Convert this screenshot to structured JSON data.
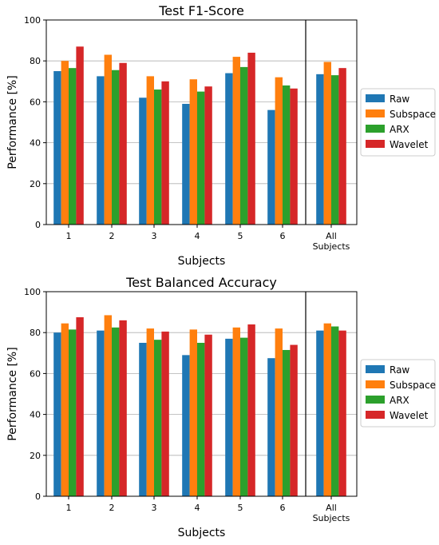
{
  "chart_data": [
    {
      "type": "bar",
      "title": "Test F1-Score",
      "xlabel": "Subjects",
      "ylabel": "Performance [%]",
      "ylim": [
        0,
        100
      ],
      "yticks": [
        0,
        20,
        40,
        60,
        80,
        100
      ],
      "categories": [
        "1",
        "2",
        "3",
        "4",
        "5",
        "6",
        "All\nSubjects"
      ],
      "grid": true,
      "legend_position": "right",
      "series": [
        {
          "name": "Raw",
          "color": "#1f77b4",
          "values": [
            75,
            72.5,
            62,
            59,
            74,
            56,
            73.5
          ]
        },
        {
          "name": "Subspace",
          "color": "#ff7f0e",
          "values": [
            80,
            83,
            72.5,
            71,
            82,
            72,
            79.5
          ]
        },
        {
          "name": "ARX",
          "color": "#2ca02c",
          "values": [
            76.5,
            75.5,
            66,
            65,
            77,
            68,
            73
          ]
        },
        {
          "name": "Wavelet",
          "color": "#d62728",
          "values": [
            87,
            79,
            70,
            67.5,
            84,
            66.5,
            76.5
          ]
        }
      ]
    },
    {
      "type": "bar",
      "title": "Test Balanced Accuracy",
      "xlabel": "Subjects",
      "ylabel": "Performance [%]",
      "ylim": [
        0,
        100
      ],
      "yticks": [
        0,
        20,
        40,
        60,
        80,
        100
      ],
      "categories": [
        "1",
        "2",
        "3",
        "4",
        "5",
        "6",
        "All\nSubjects"
      ],
      "grid": true,
      "legend_position": "right",
      "series": [
        {
          "name": "Raw",
          "color": "#1f77b4",
          "values": [
            80,
            81,
            75,
            69,
            77,
            67.5,
            81
          ]
        },
        {
          "name": "Subspace",
          "color": "#ff7f0e",
          "values": [
            84.5,
            88.5,
            82,
            81.5,
            82.5,
            82,
            84.5
          ]
        },
        {
          "name": "ARX",
          "color": "#2ca02c",
          "values": [
            81.5,
            82.5,
            76.5,
            75,
            77.5,
            71.5,
            83
          ]
        },
        {
          "name": "Wavelet",
          "color": "#d62728",
          "values": [
            87.5,
            86,
            80.5,
            79,
            84,
            74,
            81
          ]
        }
      ]
    }
  ]
}
